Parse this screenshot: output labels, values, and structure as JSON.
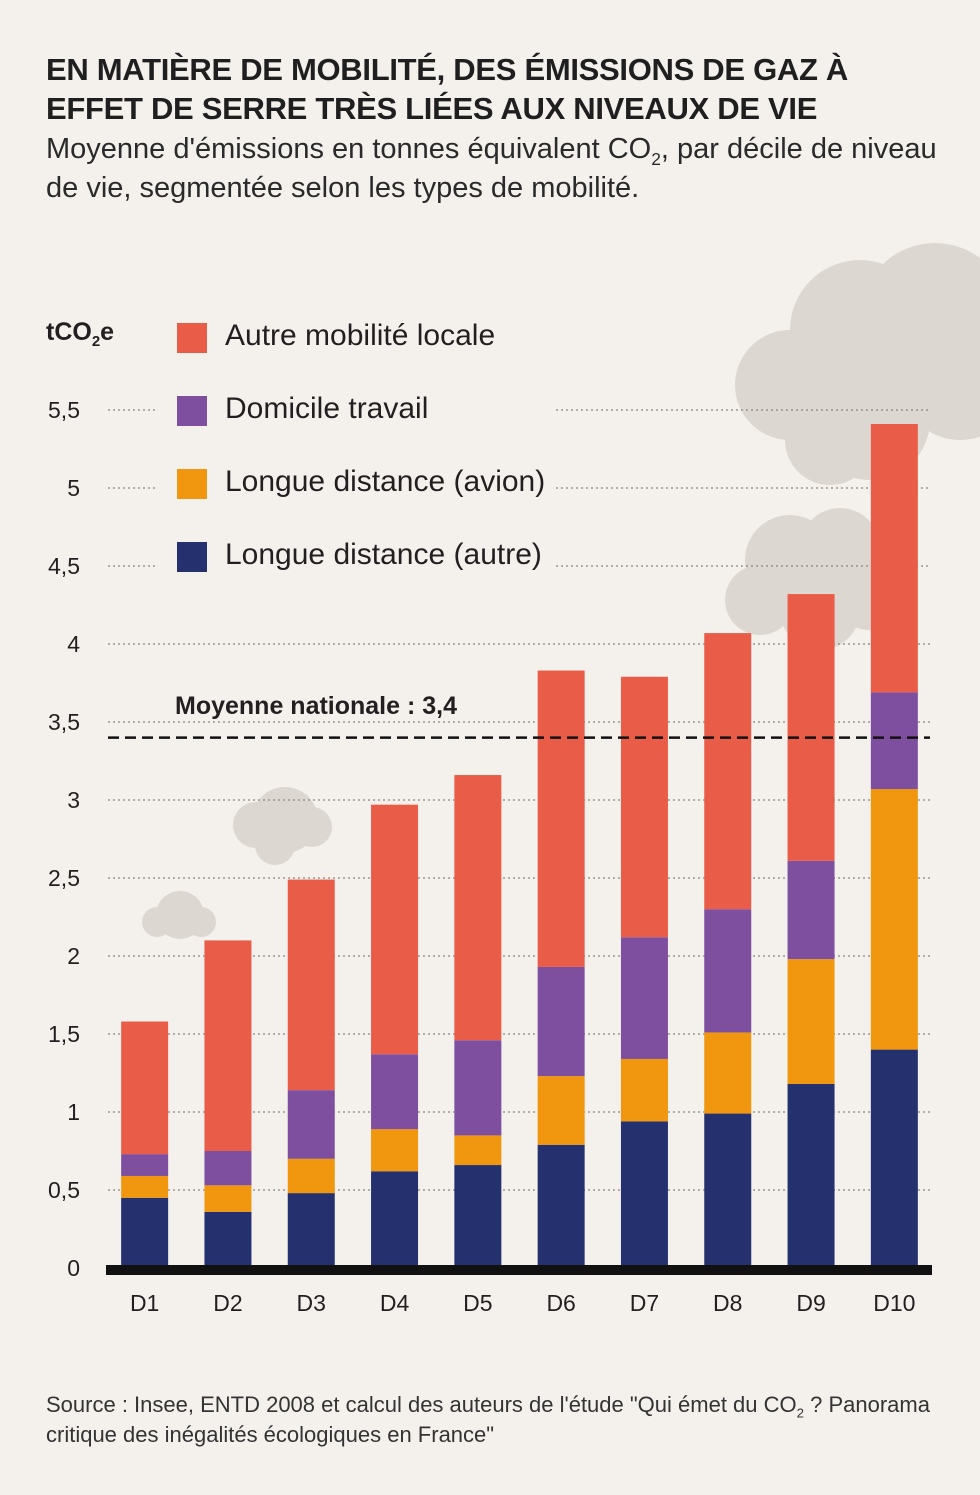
{
  "title": "EN MATIÈRE DE MOBILITÉ, DES ÉMISSIONS DE GAZ À EFFET DE SERRE TRÈS LIÉES AUX NIVEAUX DE VIE",
  "subtitle_pre": "Moyenne d'émissions en tonnes équivalent CO",
  "subtitle_sub": "2",
  "subtitle_post": ", par décile de niveau de vie, segmentée selon les types de mobilité.",
  "unit_pre": "tCO",
  "unit_sub": "2",
  "unit_post": "e",
  "mean_label": "Moyenne nationale : 3,4",
  "source_pre": "Source : Insee, ENTD 2008 et calcul des auteurs de l'étude \"Qui émet du CO",
  "source_sub": "2",
  "source_post": " ? Panorama critique des inégalités écologiques en France\"",
  "colors": {
    "background": "#f4f1ed",
    "cloud": "#dcd7d1",
    "autre_mobilite_locale": "#e85c48",
    "domicile_travail": "#7e4f9e",
    "longue_distance_avion": "#f0960f",
    "longue_distance_autre": "#25306f",
    "axis": "#111111"
  },
  "legend": [
    {
      "label": "Autre mobilité locale",
      "color": "#e85c48"
    },
    {
      "label": "Domicile travail",
      "color": "#7e4f9e"
    },
    {
      "label": "Longue distance (avion)",
      "color": "#f0960f"
    },
    {
      "label": "Longue distance (autre)",
      "color": "#25306f"
    }
  ],
  "chart_data": {
    "type": "bar",
    "stacked": true,
    "categories": [
      "D1",
      "D2",
      "D3",
      "D4",
      "D5",
      "D6",
      "D7",
      "D8",
      "D9",
      "D10"
    ],
    "series": [
      {
        "name": "Longue distance (autre)",
        "color": "#25306f",
        "values": [
          0.45,
          0.36,
          0.48,
          0.62,
          0.66,
          0.79,
          0.94,
          0.99,
          1.18,
          1.4
        ]
      },
      {
        "name": "Longue distance (avion)",
        "color": "#f0960f",
        "values": [
          0.14,
          0.17,
          0.22,
          0.27,
          0.19,
          0.44,
          0.4,
          0.52,
          0.8,
          1.67
        ]
      },
      {
        "name": "Domicile travail",
        "color": "#7e4f9e",
        "values": [
          0.14,
          0.22,
          0.44,
          0.48,
          0.61,
          0.7,
          0.78,
          0.79,
          0.63,
          0.62
        ]
      },
      {
        "name": "Autre mobilité locale",
        "color": "#e85c48",
        "values": [
          0.85,
          1.35,
          1.35,
          1.6,
          1.7,
          1.9,
          1.67,
          1.77,
          1.71,
          1.72
        ]
      }
    ],
    "ylim": [
      0,
      5.5
    ],
    "yticks": [
      0,
      0.5,
      1,
      1.5,
      2,
      2.5,
      3,
      3.5,
      4,
      4.5,
      5,
      5.5
    ],
    "ytick_labels": [
      "0",
      "0,5",
      "1",
      "1,5",
      "2",
      "2,5",
      "3",
      "3,5",
      "4",
      "4,5",
      "5",
      "5,5"
    ],
    "mean_value": 3.4,
    "grid": true,
    "legend_position": "top-left",
    "xlabel": "",
    "ylabel": "tCO2e"
  }
}
